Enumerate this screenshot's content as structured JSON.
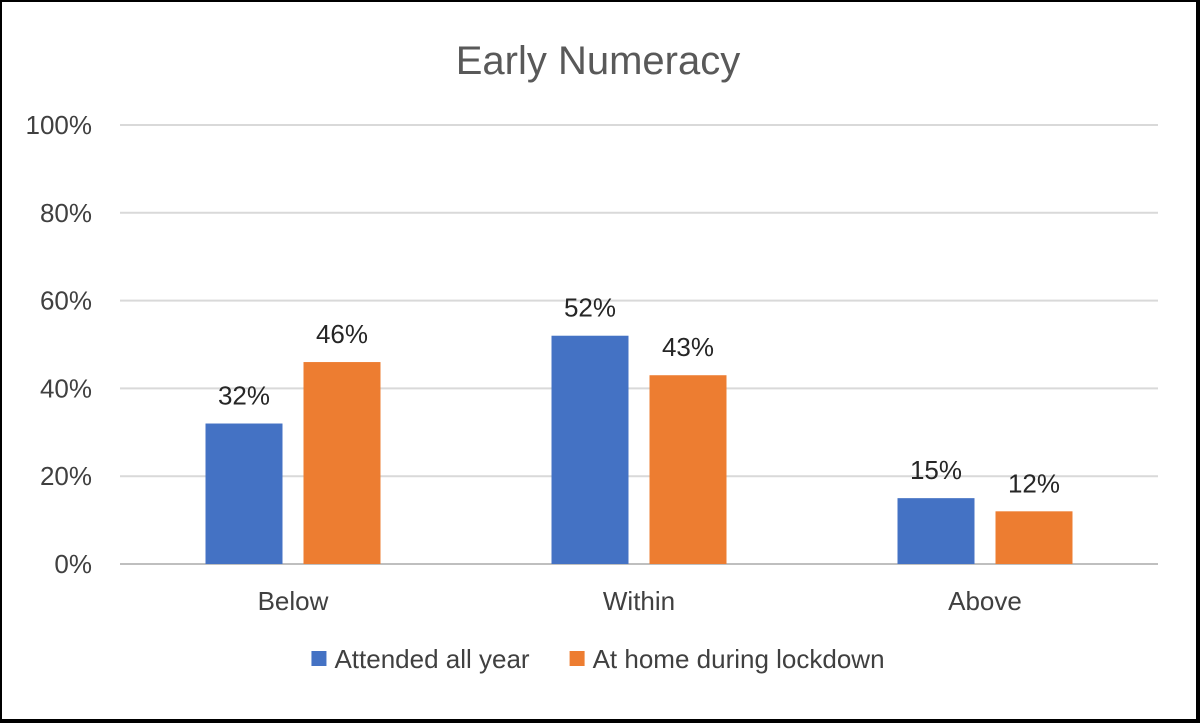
{
  "chart_data": {
    "type": "bar",
    "title": "Early Numeracy",
    "categories": [
      "Below",
      "Within",
      "Above"
    ],
    "series": [
      {
        "name": "Attended all year",
        "values": [
          32,
          52,
          15
        ],
        "color": "#4472C4"
      },
      {
        "name": "At home during lockdown",
        "values": [
          46,
          43,
          12
        ],
        "color": "#ED7D31"
      }
    ],
    "data_labels": [
      [
        "32%",
        "52%",
        "15%"
      ],
      [
        "46%",
        "43%",
        "12%"
      ]
    ],
    "y_ticks": [
      "0%",
      "20%",
      "40%",
      "60%",
      "80%",
      "100%"
    ],
    "y_tick_values": [
      0,
      20,
      40,
      60,
      80,
      100
    ],
    "ylim": [
      0,
      100
    ],
    "xlabel": "",
    "ylabel": "",
    "grid": true,
    "legend_position": "bottom",
    "colors": {
      "title": "#595959",
      "axis_text": "#404040",
      "data_label": "#262626",
      "gridline": "#D9D9D9",
      "axis_line": "#BFBFBF"
    }
  }
}
